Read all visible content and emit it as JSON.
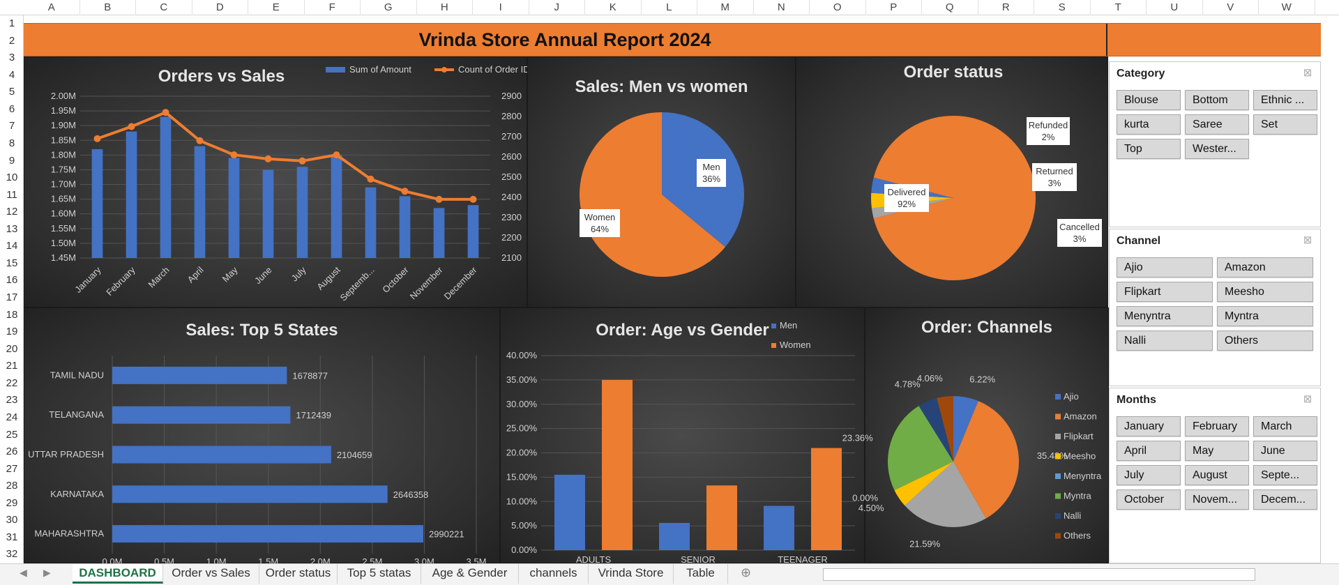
{
  "columns": [
    "A",
    "B",
    "C",
    "D",
    "E",
    "F",
    "G",
    "H",
    "I",
    "J",
    "K",
    "L",
    "M",
    "N",
    "O",
    "P",
    "Q",
    "R",
    "S",
    "T",
    "U",
    "V",
    "W"
  ],
  "rows": [
    "1",
    "2",
    "3",
    "4",
    "5",
    "6",
    "7",
    "8",
    "9",
    "10",
    "11",
    "12",
    "13",
    "14",
    "15",
    "16",
    "17",
    "18",
    "19",
    "20",
    "21",
    "22",
    "23",
    "24",
    "25",
    "26",
    "27",
    "28",
    "29",
    "30",
    "31",
    "32"
  ],
  "report_title": "Vrinda Store Annual Report 2024",
  "charts": {
    "orders_sales": {
      "title": "Orders vs Sales",
      "legend": [
        "Sum of Amount",
        "Count of Order ID"
      ],
      "months": [
        "January",
        "February",
        "March",
        "April",
        "May",
        "June",
        "July",
        "August",
        "Septemb...",
        "October",
        "November",
        "December"
      ],
      "y1_ticks": [
        "2.00M",
        "1.95M",
        "1.90M",
        "1.85M",
        "1.80M",
        "1.75M",
        "1.70M",
        "1.65M",
        "1.60M",
        "1.55M",
        "1.50M",
        "1.45M"
      ],
      "y2_ticks": [
        "2900",
        "2800",
        "2700",
        "2600",
        "2500",
        "2400",
        "2300",
        "2200",
        "2100"
      ]
    },
    "men_women": {
      "title": "Sales: Men vs women",
      "men_label": "Men",
      "men_pct": "36%",
      "women_label": "Women",
      "women_pct": "64%"
    },
    "order_status": {
      "title": "Order status",
      "labels": [
        {
          "name": "Delivered",
          "pct": "92%"
        },
        {
          "name": "Refunded",
          "pct": "2%"
        },
        {
          "name": "Returned",
          "pct": "3%"
        },
        {
          "name": "Cancelled",
          "pct": "3%"
        }
      ]
    },
    "top_states": {
      "title": "Sales: Top 5 States",
      "states": [
        "TAMIL NADU",
        "TELANGANA",
        "UTTAR PRADESH",
        "KARNATAKA",
        "MAHARASHTRA"
      ],
      "values_text": [
        "1678877",
        "1712439",
        "2104659",
        "2646358",
        "2990221"
      ],
      "x_ticks": [
        "0.0M",
        "0.5M",
        "1.0M",
        "1.5M",
        "2.0M",
        "2.5M",
        "3.0M",
        "3.5M"
      ]
    },
    "age_gender": {
      "title": "Order: Age vs Gender",
      "legend": [
        "Men",
        "Women"
      ],
      "groups": [
        "ADULTS",
        "SENIOR",
        "TEENAGER"
      ],
      "y_ticks": [
        "40.00%",
        "35.00%",
        "30.00%",
        "25.00%",
        "20.00%",
        "15.00%",
        "10.00%",
        "5.00%",
        "0.00%"
      ]
    },
    "channels": {
      "title": "Order: Channels",
      "legend": [
        "Ajio",
        "Amazon",
        "Flipkart",
        "Meesho",
        "Menyntra",
        "Myntra",
        "Nalli",
        "Others"
      ],
      "pct_labels": [
        "6.22%",
        "35.48%",
        "21.59%",
        "4.50%",
        "0.00%",
        "23.36%",
        "4.78%",
        "4.06%"
      ]
    }
  },
  "chart_data": [
    {
      "type": "bar",
      "title": "Orders vs Sales",
      "categories": [
        "January",
        "February",
        "March",
        "April",
        "May",
        "June",
        "July",
        "August",
        "Septemb...",
        "October",
        "November",
        "December"
      ],
      "series": [
        {
          "name": "Sum of Amount",
          "type": "bar",
          "axis": "left",
          "values": [
            1.82,
            1.88,
            1.93,
            1.83,
            1.79,
            1.75,
            1.76,
            1.8,
            1.69,
            1.66,
            1.62,
            1.63
          ]
        },
        {
          "name": "Count of Order ID",
          "type": "line",
          "axis": "right",
          "values": [
            2690,
            2750,
            2820,
            2680,
            2610,
            2590,
            2580,
            2610,
            2490,
            2430,
            2390,
            2390
          ]
        }
      ],
      "ylim": [
        1.45,
        2.0
      ],
      "y2lim": [
        2100,
        2900
      ],
      "legend": "top-right"
    },
    {
      "type": "pie",
      "title": "Sales: Men vs women",
      "categories": [
        "Men",
        "Women"
      ],
      "values": [
        36,
        64
      ],
      "colors": [
        "#4472c4",
        "#ed7d31"
      ]
    },
    {
      "type": "pie",
      "title": "Order status",
      "categories": [
        "Delivered",
        "Refunded",
        "Returned",
        "Cancelled"
      ],
      "values": [
        92,
        2,
        3,
        3
      ],
      "colors": [
        "#ed7d31",
        "#a5a5a5",
        "#ffc000",
        "#4472c4"
      ]
    },
    {
      "type": "bar",
      "orientation": "horizontal",
      "title": "Sales: Top 5 States",
      "categories": [
        "TAMIL NADU",
        "TELANGANA",
        "UTTAR PRADESH",
        "KARNATAKA",
        "MAHARASHTRA"
      ],
      "values": [
        1678877,
        1712439,
        2104659,
        2646358,
        2990221
      ],
      "xlim": [
        0,
        3500000
      ]
    },
    {
      "type": "bar",
      "title": "Order: Age vs Gender",
      "categories": [
        "ADULTS",
        "SENIOR",
        "TEENAGER"
      ],
      "series": [
        {
          "name": "Men",
          "values": [
            15.5,
            5.6,
            9.1
          ]
        },
        {
          "name": "Women",
          "values": [
            35.0,
            13.3,
            21.0
          ]
        }
      ],
      "ylim": [
        0,
        40
      ],
      "legend": "top-right"
    },
    {
      "type": "pie",
      "title": "Order: Channels",
      "categories": [
        "Ajio",
        "Amazon",
        "Flipkart",
        "Meesho",
        "Menyntra",
        "Myntra",
        "Nalli",
        "Others"
      ],
      "values": [
        6.22,
        35.48,
        21.59,
        4.5,
        0.0,
        23.36,
        4.78,
        4.06
      ],
      "colors": [
        "#4472c4",
        "#ed7d31",
        "#a5a5a5",
        "#ffc000",
        "#5b9bd5",
        "#70ad47",
        "#264478",
        "#9e480e"
      ],
      "legend": "right"
    }
  ],
  "slicers": {
    "category": {
      "title": "Category",
      "items": [
        "Blouse",
        "Bottom",
        "Ethnic ...",
        "kurta",
        "Saree",
        "Set",
        "Top",
        "Wester..."
      ]
    },
    "channel": {
      "title": "Channel",
      "items": [
        "Ajio",
        "Amazon",
        "Flipkart",
        "Meesho",
        "Menyntra",
        "Myntra",
        "Nalli",
        "Others"
      ]
    },
    "months": {
      "title": "Months",
      "items": [
        "January",
        "February",
        "March",
        "April",
        "May",
        "June",
        "July",
        "August",
        "Septe...",
        "October",
        "Novem...",
        "Decem..."
      ]
    }
  },
  "tabs": [
    "DASHBOARD",
    "Order vs Sales",
    "Order status",
    "Top 5 statas",
    "Age & Gender",
    "channels",
    "Vrinda Store",
    "Table"
  ],
  "active_tab": "DASHBOARD"
}
